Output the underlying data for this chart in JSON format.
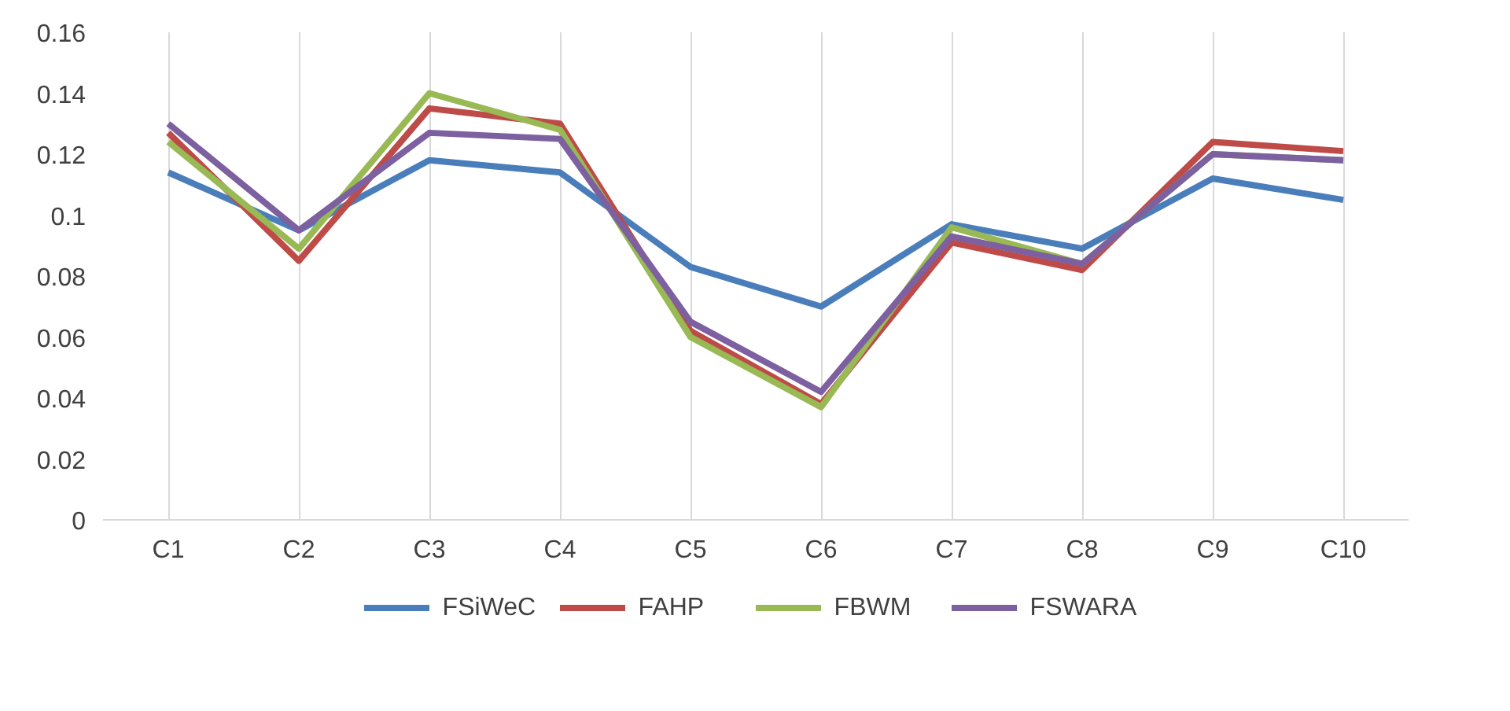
{
  "chart_data": {
    "type": "line",
    "categories": [
      "C1",
      "C2",
      "C3",
      "C4",
      "C5",
      "C6",
      "C7",
      "C8",
      "C9",
      "C10"
    ],
    "series": [
      {
        "name": "FSiWeC",
        "color": "#4a7ebb",
        "values": [
          0.114,
          0.095,
          0.118,
          0.114,
          0.083,
          0.07,
          0.097,
          0.089,
          0.112,
          0.105
        ]
      },
      {
        "name": "FAHP",
        "color": "#be4b48",
        "values": [
          0.127,
          0.085,
          0.135,
          0.13,
          0.062,
          0.038,
          0.091,
          0.082,
          0.124,
          0.121
        ]
      },
      {
        "name": "FBWM",
        "color": "#98b954",
        "values": [
          0.124,
          0.089,
          0.14,
          0.128,
          0.06,
          0.037,
          0.096,
          0.084,
          0.12,
          0.118
        ]
      },
      {
        "name": "FSWARA",
        "color": "#7d60a0",
        "values": [
          0.13,
          0.095,
          0.127,
          0.125,
          0.065,
          0.042,
          0.093,
          0.084,
          0.12,
          0.118
        ]
      }
    ],
    "ylim": [
      0,
      0.16
    ],
    "yticks": [
      0,
      0.02,
      0.04,
      0.06,
      0.08,
      0.1,
      0.12,
      0.14,
      0.16
    ],
    "grid": "x",
    "legend": "bottom",
    "marker": "none",
    "line_style": "solid"
  }
}
